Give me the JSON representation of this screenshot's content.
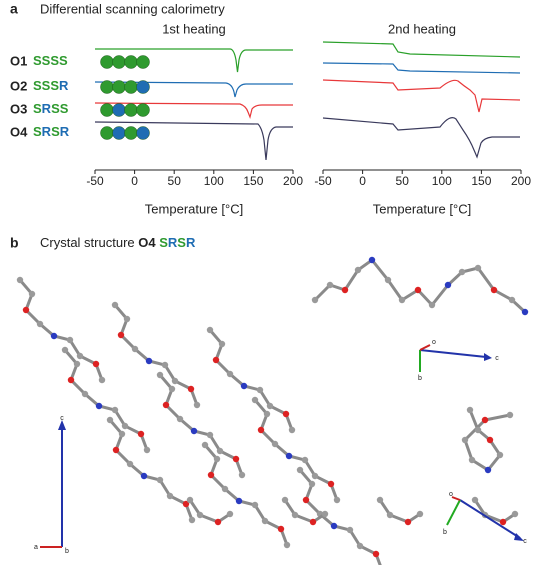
{
  "panel_a": {
    "label": "a",
    "title": "Differential scanning calorimetry",
    "letter_colors": {
      "S": "#2f9a2f",
      "R": "#1f6db3"
    },
    "rows": [
      {
        "label": "O1",
        "sequence": "SSSS",
        "color": "#2aa02a"
      },
      {
        "label": "O2",
        "sequence": "SSSR",
        "color": "#1f6db3"
      },
      {
        "label": "O3",
        "sequence": "SRSS",
        "color": "#e8383a"
      },
      {
        "label": "O4",
        "sequence": "SRSR",
        "color": "#3a3a5c"
      }
    ],
    "charts": [
      {
        "heading": "1st heating",
        "xlabel": "Temperature [°C]",
        "xlim": [
          -50,
          200
        ],
        "xticks": [
          -50,
          0,
          50,
          100,
          150,
          200
        ]
      },
      {
        "heading": "2nd heating",
        "xlabel": "Temperature [°C]",
        "xlim": [
          -50,
          200
        ],
        "xticks": [
          -50,
          0,
          50,
          100,
          150,
          200
        ]
      }
    ]
  },
  "panel_b": {
    "label": "b",
    "title": "Crystal structure",
    "compound": "O4",
    "sequence": "SRSR",
    "axis_labels": {
      "c": "c",
      "a": "a",
      "b": "b",
      "o": "o"
    }
  }
}
